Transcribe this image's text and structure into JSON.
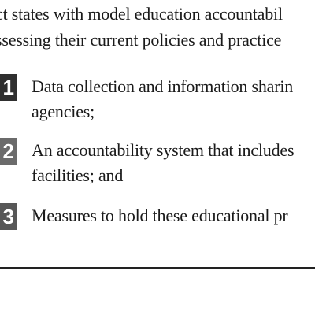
{
  "colors": {
    "text": "#1a1a1a",
    "number_box_1": "#2f2f2f",
    "number_box_2": "#6b6b6b",
    "number_box_3": "#575757",
    "rule": "#222222"
  },
  "intro": {
    "line1": "ct states with model education accountabil",
    "line2": "ssessing their current policies and practice"
  },
  "items": [
    {
      "number": "1",
      "line1": "Data collection and information sharin",
      "line2": "agencies;"
    },
    {
      "number": "2",
      "line1": "An accountability system that includes",
      "line2": "facilities; and"
    },
    {
      "number": "3",
      "line1": "Measures to hold these educational pr"
    }
  ]
}
